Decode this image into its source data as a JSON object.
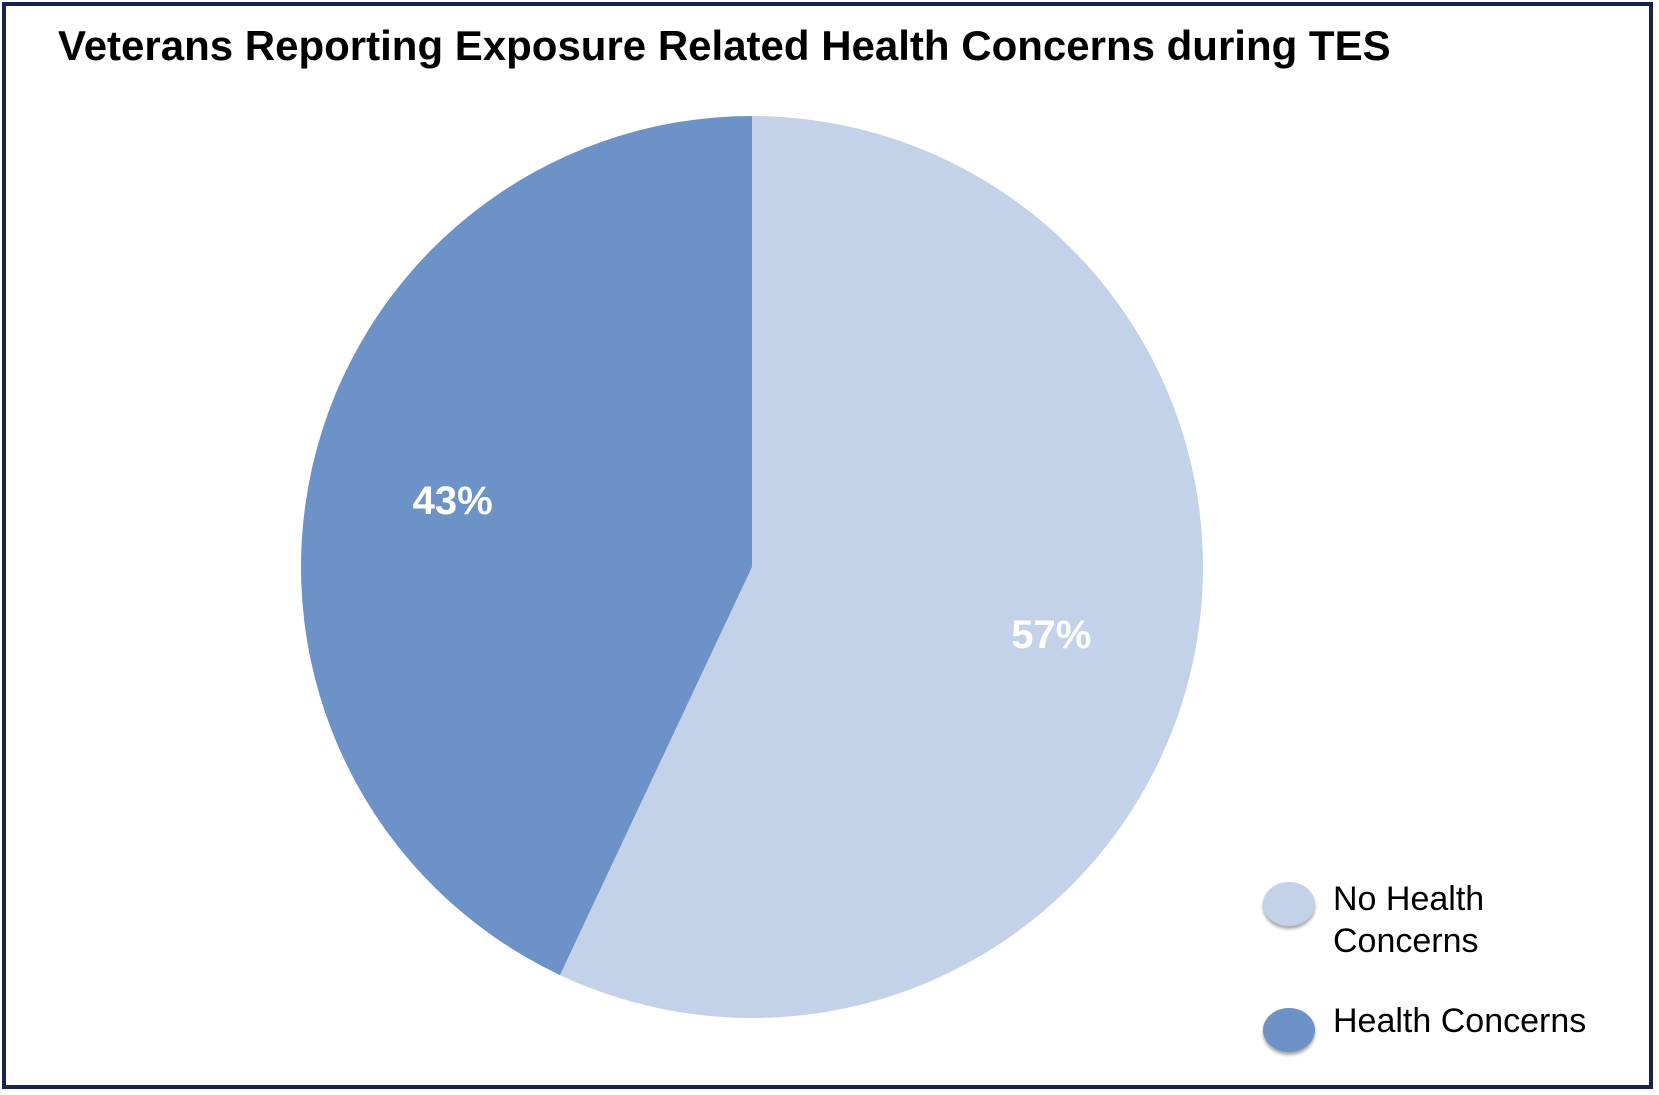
{
  "chart_data": {
    "type": "pie",
    "title": "Veterans Reporting Exposure Related Health Concerns during TES",
    "slices": [
      {
        "name": "No Health Concerns",
        "value": 57,
        "label": "57%",
        "color": "#c3d2e8"
      },
      {
        "name": "Health Concerns",
        "value": 43,
        "label": "43%",
        "color": "#6c92c8"
      }
    ],
    "start": "12 o'clock",
    "direction": "clockwise",
    "legend": {
      "position": "bottom-right",
      "items": [
        {
          "lines": [
            "No Health",
            "Concerns"
          ],
          "color": "#c3d2e8"
        },
        {
          "lines": [
            "Health Concerns"
          ],
          "color": "#6c92c8"
        }
      ]
    }
  }
}
